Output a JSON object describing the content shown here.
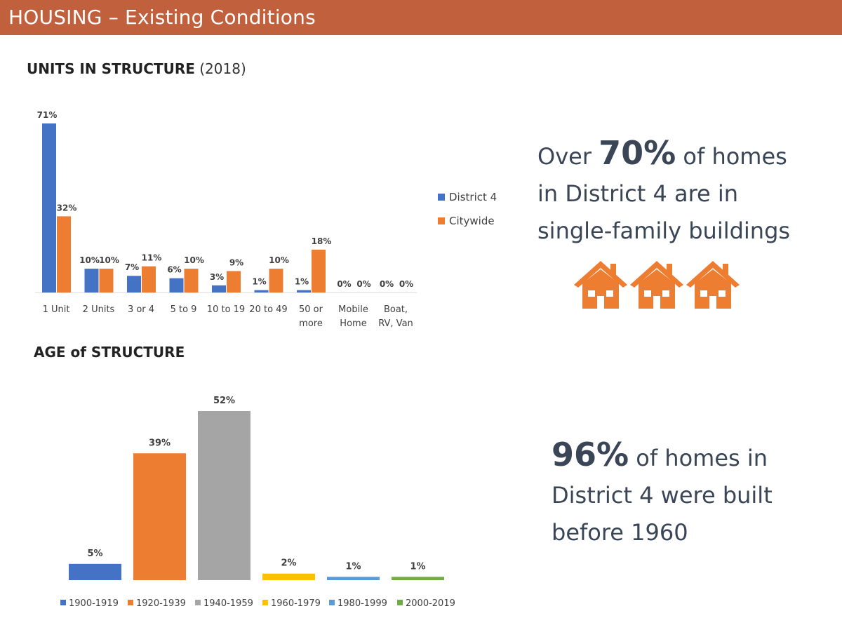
{
  "header": {
    "title": "HOUSING – Existing Conditions"
  },
  "colors": {
    "header": "#c0603c",
    "district": "#4472c4",
    "citywide": "#ed7d31",
    "callout_text": "#3a4556",
    "house": "#ed7d31"
  },
  "units_section": {
    "title": "UNITS IN STRUCTURE",
    "subtitle": "(2018)"
  },
  "age_section": {
    "title": "AGE of STRUCTURE"
  },
  "callouts": {
    "units": {
      "prefix": "Over ",
      "big": "70%",
      "suffix": " of homes",
      "line2": "in District 4 are in",
      "line3": "single-family buildings"
    },
    "age": {
      "big": "96%",
      "suffix": " of homes in",
      "line2": "District 4 were built",
      "line3": "before 1960"
    }
  },
  "icons": [
    "house-icon",
    "house-icon",
    "house-icon"
  ],
  "chart_data": [
    {
      "type": "bar",
      "title": "UNITS IN STRUCTURE (2018)",
      "categories": [
        "1 Unit",
        "2 Units",
        "3 or 4",
        "5 to 9",
        "10 to 19",
        "20 to 49",
        "50 or more",
        "Mobile Home",
        "Boat, RV, Van"
      ],
      "category_lines": [
        [
          "1 Unit"
        ],
        [
          "2 Units"
        ],
        [
          "3 or 4"
        ],
        [
          "5 to 9"
        ],
        [
          "10 to 19"
        ],
        [
          "20 to 49"
        ],
        [
          "50 or",
          "more"
        ],
        [
          "Mobile",
          "Home"
        ],
        [
          "Boat,",
          "RV, Van"
        ]
      ],
      "series": [
        {
          "name": "District 4",
          "values": [
            71,
            10,
            7,
            6,
            3,
            1,
            1,
            0,
            0
          ],
          "color": "#4472c4"
        },
        {
          "name": "Citywide",
          "values": [
            32,
            10,
            11,
            10,
            9,
            10,
            18,
            0,
            0
          ],
          "color": "#ed7d31"
        }
      ],
      "value_suffix": "%",
      "ylim": [
        0,
        71
      ],
      "legend": "right",
      "grid": false
    },
    {
      "type": "bar",
      "title": "AGE of STRUCTURE",
      "categories": [
        "1900-1919",
        "1920-1939",
        "1940-1959",
        "1960-1979",
        "1980-1999",
        "2000-2019"
      ],
      "values": [
        5,
        39,
        52,
        2,
        1,
        1
      ],
      "colors": [
        "#4472c4",
        "#ed7d31",
        "#a5a5a5",
        "#ffc000",
        "#5b9bd5",
        "#70ad47"
      ],
      "value_suffix": "%",
      "ylim": [
        0,
        52
      ],
      "legend": "bottom",
      "grid": false
    }
  ]
}
